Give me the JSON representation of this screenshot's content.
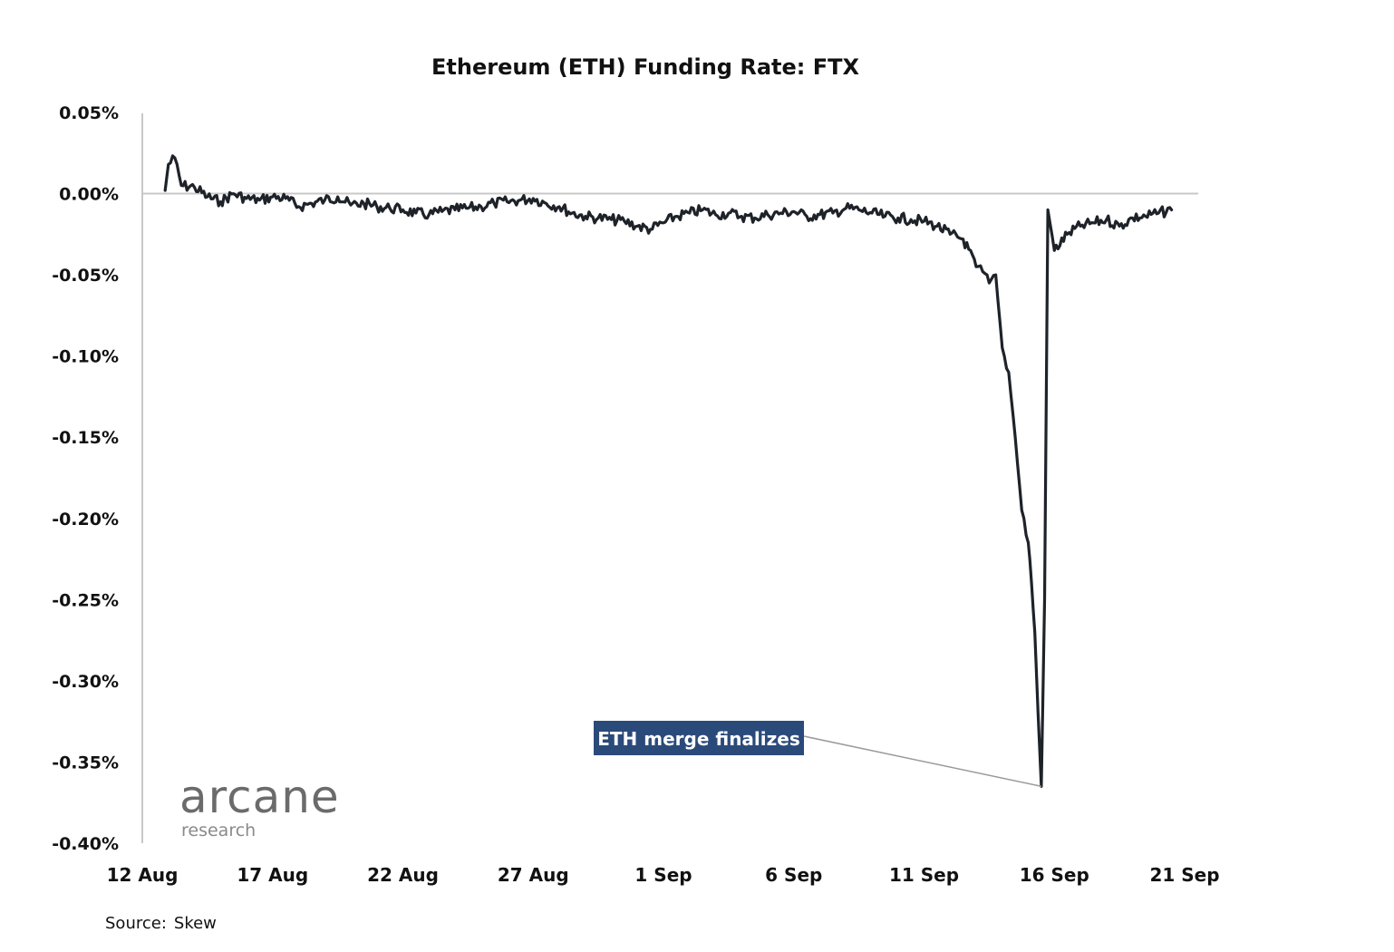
{
  "chart_data": {
    "type": "line",
    "title": "Ethereum (ETH) Funding Rate: FTX",
    "source_label": "Source:",
    "source_value": "Skew",
    "y_unit": "%",
    "ylim": [
      -0.4,
      0.05
    ],
    "y_ticks": [
      0.05,
      0.0,
      -0.05,
      -0.1,
      -0.15,
      -0.2,
      -0.25,
      -0.3,
      -0.35,
      -0.4
    ],
    "y_tick_labels": [
      "0.05%",
      "0.00%",
      "-0.05%",
      "-0.10%",
      "-0.15%",
      "-0.20%",
      "-0.25%",
      "-0.30%",
      "-0.35%",
      "-0.40%"
    ],
    "x_ticks": [
      "2022-08-12",
      "2022-08-17",
      "2022-08-22",
      "2022-08-27",
      "2022-09-01",
      "2022-09-06",
      "2022-09-11",
      "2022-09-16",
      "2022-09-21"
    ],
    "x_tick_labels": [
      "12 Aug",
      "17 Aug",
      "22 Aug",
      "27 Aug",
      "1 Sep",
      "6 Sep",
      "11 Sep",
      "16 Sep",
      "21 Sep"
    ],
    "xlim": [
      "2022-08-12",
      "2022-09-21"
    ],
    "zero_line": true,
    "grid": false,
    "line_color": "#1e2229",
    "series": [
      {
        "x": [
          "2022-08-12 21:00",
          "2022-08-13 00:00",
          "2022-08-13 06:00",
          "2022-08-13 12:00",
          "2022-08-14 00:00",
          "2022-08-14 12:00",
          "2022-08-15 00:00",
          "2022-08-15 12:00",
          "2022-08-16 00:00",
          "2022-08-16 12:00",
          "2022-08-17 00:00",
          "2022-08-17 12:00",
          "2022-08-18 00:00",
          "2022-08-18 12:00",
          "2022-08-19 00:00",
          "2022-08-19 12:00",
          "2022-08-20 00:00",
          "2022-08-20 12:00",
          "2022-08-21 00:00",
          "2022-08-21 12:00",
          "2022-08-22 00:00",
          "2022-08-22 12:00",
          "2022-08-23 00:00",
          "2022-08-23 12:00",
          "2022-08-24 00:00",
          "2022-08-24 12:00",
          "2022-08-25 00:00",
          "2022-08-25 12:00",
          "2022-08-26 00:00",
          "2022-08-26 12:00",
          "2022-08-27 00:00",
          "2022-08-27 12:00",
          "2022-08-28 00:00",
          "2022-08-28 12:00",
          "2022-08-29 00:00",
          "2022-08-29 12:00",
          "2022-08-30 00:00",
          "2022-08-30 12:00",
          "2022-08-31 00:00",
          "2022-08-31 12:00",
          "2022-09-01 00:00",
          "2022-09-01 12:00",
          "2022-09-02 00:00",
          "2022-09-02 12:00",
          "2022-09-03 00:00",
          "2022-09-03 12:00",
          "2022-09-04 00:00",
          "2022-09-04 12:00",
          "2022-09-05 00:00",
          "2022-09-05 12:00",
          "2022-09-06 00:00",
          "2022-09-06 12:00",
          "2022-09-07 00:00",
          "2022-09-07 12:00",
          "2022-09-08 00:00",
          "2022-09-08 12:00",
          "2022-09-09 00:00",
          "2022-09-09 12:00",
          "2022-09-10 00:00",
          "2022-09-10 12:00",
          "2022-09-11 00:00",
          "2022-09-11 12:00",
          "2022-09-12 00:00",
          "2022-09-12 12:00",
          "2022-09-13 00:00",
          "2022-09-13 06:00",
          "2022-09-13 12:00",
          "2022-09-13 18:00",
          "2022-09-14 00:00",
          "2022-09-14 06:00",
          "2022-09-14 12:00",
          "2022-09-14 18:00",
          "2022-09-15 00:00",
          "2022-09-15 03:00",
          "2022-09-15 06:00",
          "2022-09-15 09:00",
          "2022-09-15 12:00",
          "2022-09-15 15:00",
          "2022-09-15 18:00",
          "2022-09-16 00:00",
          "2022-09-16 12:00",
          "2022-09-17 00:00",
          "2022-09-17 12:00",
          "2022-09-18 00:00",
          "2022-09-18 12:00",
          "2022-09-19 00:00",
          "2022-09-19 12:00",
          "2022-09-20 00:00",
          "2022-09-20 12:00"
        ],
        "values": [
          0.002,
          0.018,
          0.022,
          0.005,
          0.004,
          -0.002,
          -0.005,
          0.0,
          -0.003,
          -0.004,
          -0.002,
          -0.003,
          -0.008,
          -0.006,
          -0.004,
          -0.002,
          -0.007,
          -0.006,
          -0.008,
          -0.009,
          -0.01,
          -0.012,
          -0.013,
          -0.011,
          -0.01,
          -0.009,
          -0.008,
          -0.006,
          -0.005,
          -0.004,
          -0.003,
          -0.006,
          -0.008,
          -0.012,
          -0.014,
          -0.015,
          -0.016,
          -0.017,
          -0.02,
          -0.022,
          -0.018,
          -0.014,
          -0.012,
          -0.01,
          -0.013,
          -0.012,
          -0.014,
          -0.015,
          -0.013,
          -0.012,
          -0.011,
          -0.014,
          -0.013,
          -0.012,
          -0.009,
          -0.01,
          -0.012,
          -0.014,
          -0.015,
          -0.016,
          -0.017,
          -0.02,
          -0.025,
          -0.028,
          -0.045,
          -0.048,
          -0.055,
          -0.05,
          -0.095,
          -0.11,
          -0.15,
          -0.195,
          -0.215,
          -0.24,
          -0.27,
          -0.32,
          -0.365,
          -0.25,
          -0.01,
          -0.035,
          -0.025,
          -0.02,
          -0.018,
          -0.016,
          -0.02,
          -0.015,
          -0.014,
          -0.012,
          -0.01
        ]
      }
    ],
    "annotation": {
      "text": "ETH merge finalizes",
      "x": "2022-09-15 12:00",
      "y": -0.365,
      "box_color": "#2a4a7a"
    }
  },
  "branding": {
    "logo_main": "arcane",
    "logo_sub": "research"
  }
}
